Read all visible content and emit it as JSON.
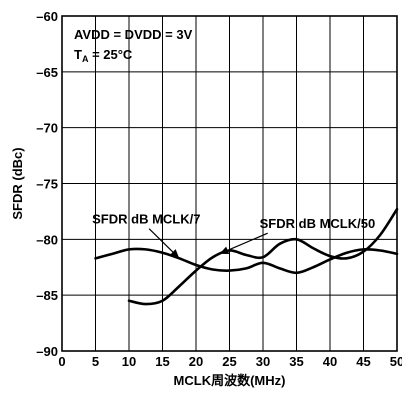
{
  "chart_data": {
    "type": "line",
    "title": "",
    "xlabel": "MCLK周波数(MHz)",
    "ylabel": "SFDR (dBc)",
    "xlim": [
      0,
      50
    ],
    "ylim": [
      -90,
      -60
    ],
    "x_ticks": [
      0,
      5,
      10,
      15,
      20,
      25,
      30,
      35,
      40,
      45,
      50
    ],
    "y_ticks": [
      -90,
      -85,
      -80,
      -75,
      -70,
      -65,
      -60
    ],
    "x_tick_labels": [
      "0",
      "5",
      "10",
      "15",
      "20",
      "25",
      "30",
      "35",
      "40",
      "45",
      "50"
    ],
    "y_tick_labels": [
      "–90",
      "–85",
      "–80",
      "–75",
      "–70",
      "–65",
      "–60"
    ],
    "grid": true,
    "conditions": {
      "line1": "AVDD = DVDD = 3V",
      "line2_main": "T",
      "line2_sub": "A",
      "line2_rest": " = 25°C"
    },
    "series": [
      {
        "name": "SFDR dB MCLK/7",
        "x": [
          5,
          7.5,
          10,
          12.5,
          15,
          17.5,
          20,
          22.5,
          25,
          27.5,
          30,
          32.5,
          35,
          37.5,
          40,
          42.5,
          45,
          47.5,
          50
        ],
        "y": [
          -81.7,
          -81.3,
          -80.9,
          -80.9,
          -81.2,
          -81.7,
          -82.3,
          -82.7,
          -82.8,
          -82.6,
          -82.1,
          -82.6,
          -83.0,
          -82.5,
          -81.8,
          -81.2,
          -80.9,
          -81.0,
          -81.3
        ]
      },
      {
        "name": "SFDR dB MCLK/50",
        "x": [
          10,
          12.5,
          15,
          17.5,
          20,
          22.5,
          25,
          27.5,
          30,
          32.5,
          35,
          37.5,
          40,
          42.5,
          45,
          47.5,
          50
        ],
        "y": [
          -85.5,
          -85.8,
          -85.5,
          -84.2,
          -82.8,
          -81.6,
          -81.0,
          -81.4,
          -81.6,
          -80.4,
          -80.0,
          -80.8,
          -81.5,
          -81.7,
          -81.1,
          -79.6,
          -77.3
        ]
      }
    ],
    "annotations": [
      {
        "text": "SFDR dB MCLK/7",
        "series": 0,
        "x": 4.5,
        "y": -78.6,
        "target_x": 17.5,
        "target_y": -81.7
      },
      {
        "text": "SFDR dB MCLK/50",
        "series": 1,
        "x": 29.5,
        "y": -79.0,
        "target_x": 23.5,
        "target_y": -81.3
      }
    ]
  }
}
